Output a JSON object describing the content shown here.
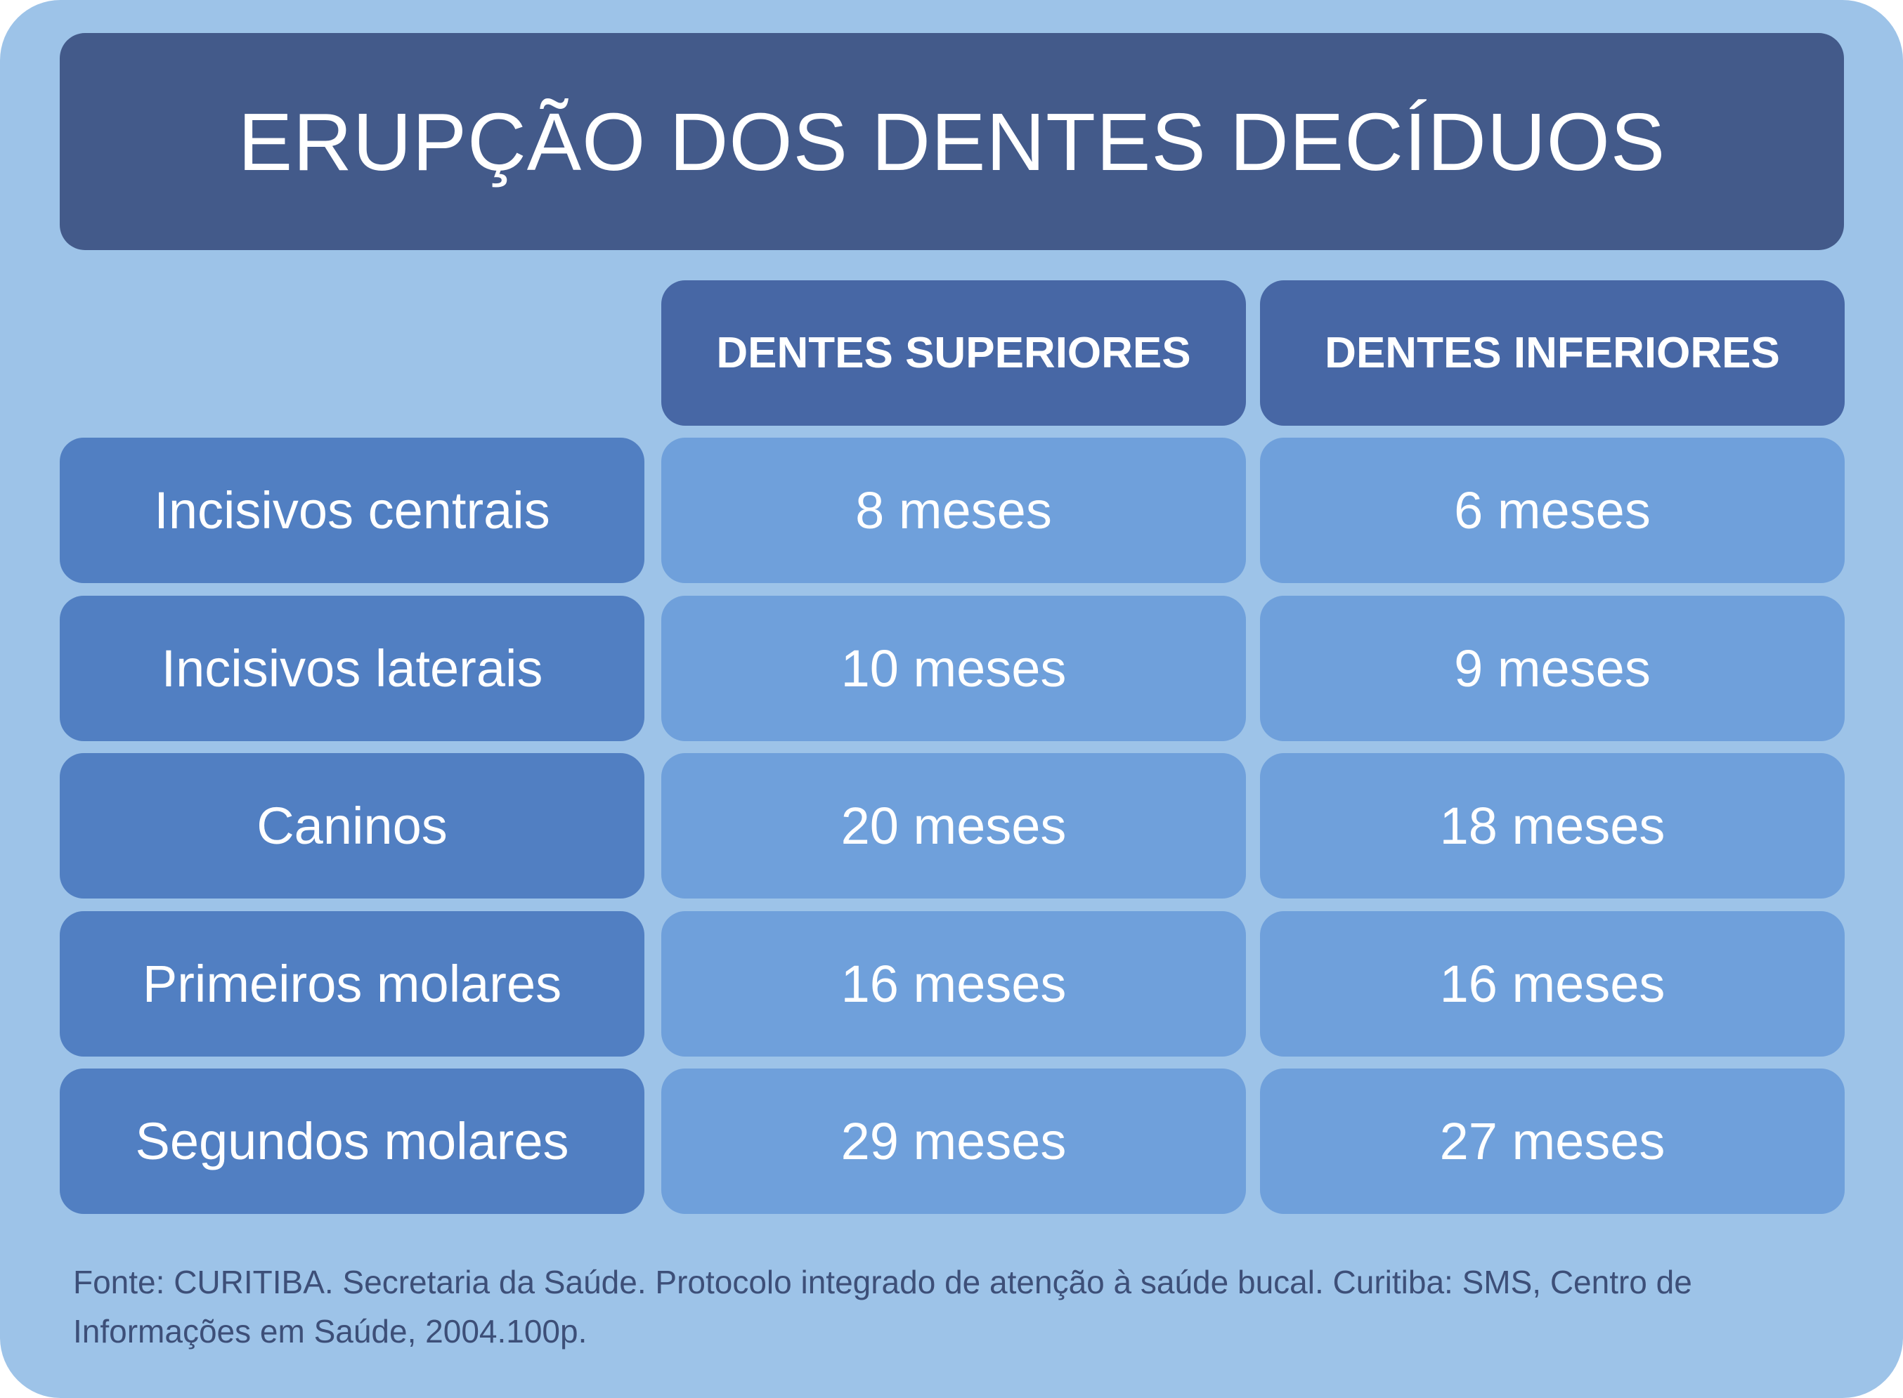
{
  "title": "ERUPÇÃO DOS DENTES DECÍDUOS",
  "table": {
    "columns": [
      "DENTES SUPERIORES",
      "DENTES INFERIORES"
    ],
    "rows": [
      [
        "Incisivos centrais",
        "8 meses",
        "6 meses"
      ],
      [
        "Incisivos laterais",
        "10 meses",
        "9 meses"
      ],
      [
        "Caninos",
        "20 meses",
        "18 meses"
      ],
      [
        "Primeiros molares",
        "16 meses",
        "16 meses"
      ],
      [
        "Segundos molares",
        "29 meses",
        "27 meses"
      ]
    ]
  },
  "source": "Fonte: CURITIBA. Secretaria da Saúde. Protocolo integrado de atenção à saúde bucal. Curitiba: SMS, Centro de Informações em Saúde, 2004.100p."
}
